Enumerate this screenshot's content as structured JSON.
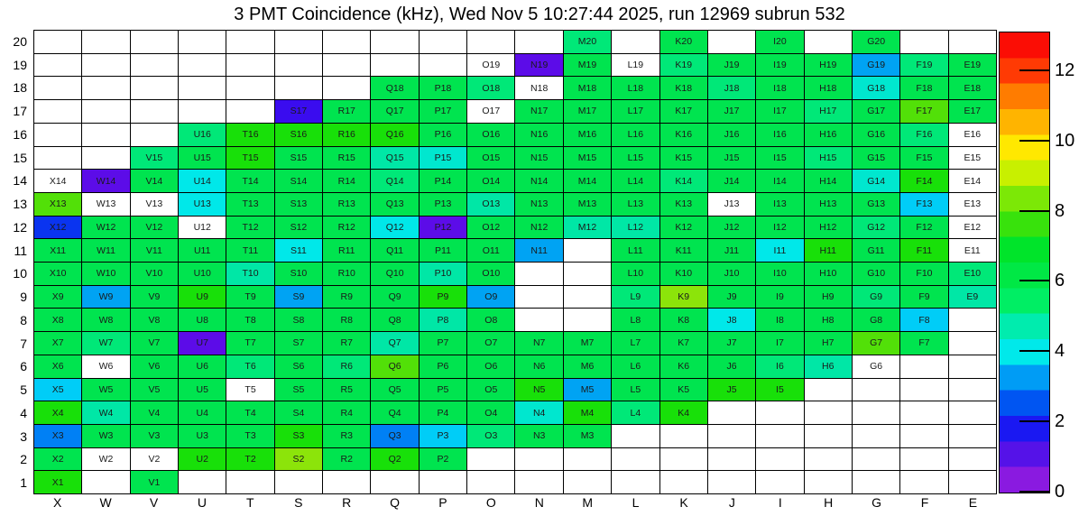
{
  "title": "3 PMT Coincidence (kHz), Wed Nov  5 10:27:44 2025, run 12969 subrun 532",
  "chart_data": {
    "type": "heatmap",
    "title": "3 PMT Coincidence (kHz), Wed Nov  5 10:27:44 2025, run 12969 subrun 532",
    "unit": "kHz",
    "columns": [
      "X",
      "W",
      "V",
      "U",
      "T",
      "S",
      "R",
      "Q",
      "P",
      "O",
      "N",
      "M",
      "L",
      "K",
      "J",
      "I",
      "H",
      "G",
      "F",
      "E"
    ],
    "rows": [
      20,
      19,
      18,
      17,
      16,
      15,
      14,
      13,
      12,
      11,
      10,
      9,
      8,
      7,
      6,
      5,
      4,
      3,
      2,
      1
    ],
    "colorbar": {
      "min": 0,
      "max": 13.1,
      "ticks": [
        0,
        2,
        4,
        6,
        8,
        10,
        12
      ],
      "bands_bottom_to_top": [
        "#8a1ae0",
        "#5512e8",
        "#1a18f2",
        "#0055f2",
        "#009cf5",
        "#00e9ea",
        "#00ecae",
        "#00ee64",
        "#00e845",
        "#00e42a",
        "#38e20c",
        "#7ce806",
        "#c8f000",
        "#ffe800",
        "#ffb400",
        "#ff7c00",
        "#ff3a04",
        "#fb0d05"
      ]
    },
    "palette": {
      "w": {
        "color": "#ffffff",
        "approx_khz": null
      },
      "vi": {
        "color": "#5c0ce8",
        "approx_khz": 0.7
      },
      "bv": {
        "color": "#3a0cef",
        "approx_khz": 1.5
      },
      "bl": {
        "color": "#0a34f0",
        "approx_khz": 2.2
      },
      "db": {
        "color": "#0080f5",
        "approx_khz": 2.9
      },
      "sb": {
        "color": "#00a3f3",
        "approx_khz": 3.4
      },
      "cb": {
        "color": "#00cdf7",
        "approx_khz": 3.9
      },
      "cy": {
        "color": "#00e8e9",
        "approx_khz": 4.4
      },
      "tl": {
        "color": "#00e7cf",
        "approx_khz": 4.9
      },
      "tg": {
        "color": "#00e7a6",
        "approx_khz": 5.4
      },
      "sg": {
        "color": "#00e878",
        "approx_khz": 6.1
      },
      "g": {
        "color": "#00e44f",
        "approx_khz": 7.0
      },
      "bg": {
        "color": "#18e009",
        "approx_khz": 7.9
      },
      "cg": {
        "color": "#52e008",
        "approx_khz": 8.7
      },
      "yg": {
        "color": "#8ce40a",
        "approx_khz": 9.3
      }
    },
    "cells": [
      [
        "M20",
        "sg"
      ],
      [
        "K20",
        "g"
      ],
      [
        "I20",
        "g"
      ],
      [
        "G20",
        "g"
      ],
      [
        "O19",
        "w"
      ],
      [
        "N19",
        "vi"
      ],
      [
        "M19",
        "g"
      ],
      [
        "L19",
        "w"
      ],
      [
        "K19",
        "sg"
      ],
      [
        "J19",
        "g"
      ],
      [
        "I19",
        "g"
      ],
      [
        "H19",
        "g"
      ],
      [
        "G19",
        "sb"
      ],
      [
        "F19",
        "sg"
      ],
      [
        "E19",
        "g"
      ],
      [
        "Q18",
        "g"
      ],
      [
        "P18",
        "g"
      ],
      [
        "O18",
        "sg"
      ],
      [
        "N18",
        "w"
      ],
      [
        "M18",
        "g"
      ],
      [
        "L18",
        "g"
      ],
      [
        "K18",
        "g"
      ],
      [
        "J18",
        "sg"
      ],
      [
        "I18",
        "g"
      ],
      [
        "H18",
        "g"
      ],
      [
        "G18",
        "tl"
      ],
      [
        "F18",
        "g"
      ],
      [
        "E18",
        "g"
      ],
      [
        "S17",
        "bv"
      ],
      [
        "R17",
        "g"
      ],
      [
        "Q17",
        "g"
      ],
      [
        "P17",
        "g"
      ],
      [
        "O17",
        "w"
      ],
      [
        "N17",
        "g"
      ],
      [
        "M17",
        "g"
      ],
      [
        "L17",
        "g"
      ],
      [
        "K17",
        "g"
      ],
      [
        "J17",
        "g"
      ],
      [
        "I17",
        "g"
      ],
      [
        "H17",
        "sg"
      ],
      [
        "G17",
        "g"
      ],
      [
        "F17",
        "cg"
      ],
      [
        "E17",
        "g"
      ],
      [
        "U16",
        "sg"
      ],
      [
        "T16",
        "bg"
      ],
      [
        "S16",
        "bg"
      ],
      [
        "R16",
        "bg"
      ],
      [
        "Q16",
        "bg"
      ],
      [
        "P16",
        "g"
      ],
      [
        "O16",
        "g"
      ],
      [
        "N16",
        "g"
      ],
      [
        "M16",
        "g"
      ],
      [
        "L16",
        "g"
      ],
      [
        "K16",
        "g"
      ],
      [
        "J16",
        "g"
      ],
      [
        "I16",
        "g"
      ],
      [
        "H16",
        "g"
      ],
      [
        "G16",
        "g"
      ],
      [
        "F16",
        "sg"
      ],
      [
        "E16",
        "w"
      ],
      [
        "V15",
        "sg"
      ],
      [
        "U15",
        "g"
      ],
      [
        "T15",
        "bg"
      ],
      [
        "S15",
        "g"
      ],
      [
        "R15",
        "g"
      ],
      [
        "Q15",
        "tg"
      ],
      [
        "P15",
        "tl"
      ],
      [
        "O15",
        "g"
      ],
      [
        "N15",
        "g"
      ],
      [
        "M15",
        "g"
      ],
      [
        "L15",
        "g"
      ],
      [
        "K15",
        "g"
      ],
      [
        "J15",
        "g"
      ],
      [
        "I15",
        "g"
      ],
      [
        "H15",
        "sg"
      ],
      [
        "G15",
        "g"
      ],
      [
        "F15",
        "g"
      ],
      [
        "E15",
        "w"
      ],
      [
        "X14",
        "w"
      ],
      [
        "W14",
        "vi"
      ],
      [
        "V14",
        "g"
      ],
      [
        "U14",
        "cy"
      ],
      [
        "T14",
        "g"
      ],
      [
        "S14",
        "g"
      ],
      [
        "R14",
        "g"
      ],
      [
        "Q14",
        "sg"
      ],
      [
        "P14",
        "g"
      ],
      [
        "O14",
        "g"
      ],
      [
        "N14",
        "g"
      ],
      [
        "M14",
        "g"
      ],
      [
        "L14",
        "g"
      ],
      [
        "K14",
        "sg"
      ],
      [
        "J14",
        "g"
      ],
      [
        "I14",
        "g"
      ],
      [
        "H14",
        "g"
      ],
      [
        "G14",
        "tl"
      ],
      [
        "F14",
        "bg"
      ],
      [
        "E14",
        "w"
      ],
      [
        "X13",
        "cg"
      ],
      [
        "W13",
        "w"
      ],
      [
        "V13",
        "w"
      ],
      [
        "U13",
        "cy"
      ],
      [
        "T13",
        "g"
      ],
      [
        "S13",
        "g"
      ],
      [
        "R13",
        "g"
      ],
      [
        "Q13",
        "g"
      ],
      [
        "P13",
        "g"
      ],
      [
        "O13",
        "tg"
      ],
      [
        "N13",
        "g"
      ],
      [
        "M13",
        "g"
      ],
      [
        "L13",
        "g"
      ],
      [
        "K13",
        "g"
      ],
      [
        "J13",
        "w"
      ],
      [
        "I13",
        "g"
      ],
      [
        "H13",
        "g"
      ],
      [
        "G13",
        "g"
      ],
      [
        "F13",
        "cb"
      ],
      [
        "E13",
        "w"
      ],
      [
        "X12",
        "bl"
      ],
      [
        "W12",
        "g"
      ],
      [
        "V12",
        "g"
      ],
      [
        "U12",
        "w"
      ],
      [
        "T12",
        "g"
      ],
      [
        "S12",
        "g"
      ],
      [
        "R12",
        "g"
      ],
      [
        "Q12",
        "cy"
      ],
      [
        "P12",
        "vi"
      ],
      [
        "O12",
        "g"
      ],
      [
        "N12",
        "g"
      ],
      [
        "M12",
        "tg"
      ],
      [
        "L12",
        "tg"
      ],
      [
        "K12",
        "g"
      ],
      [
        "J12",
        "g"
      ],
      [
        "I12",
        "g"
      ],
      [
        "H12",
        "g"
      ],
      [
        "G12",
        "sg"
      ],
      [
        "F12",
        "g"
      ],
      [
        "E12",
        "w"
      ],
      [
        "X11",
        "g"
      ],
      [
        "W11",
        "g"
      ],
      [
        "V11",
        "g"
      ],
      [
        "U11",
        "g"
      ],
      [
        "T11",
        "g"
      ],
      [
        "S11",
        "cy"
      ],
      [
        "R11",
        "g"
      ],
      [
        "Q11",
        "g"
      ],
      [
        "P11",
        "g"
      ],
      [
        "O11",
        "g"
      ],
      [
        "N11",
        "sb"
      ],
      [
        "L11",
        "g"
      ],
      [
        "K11",
        "g"
      ],
      [
        "J11",
        "g"
      ],
      [
        "I11",
        "cy"
      ],
      [
        "H11",
        "bg"
      ],
      [
        "G11",
        "g"
      ],
      [
        "F11",
        "bg"
      ],
      [
        "E11",
        "w"
      ],
      [
        "X10",
        "g"
      ],
      [
        "W10",
        "g"
      ],
      [
        "V10",
        "g"
      ],
      [
        "U10",
        "g"
      ],
      [
        "T10",
        "tg"
      ],
      [
        "S10",
        "g"
      ],
      [
        "R10",
        "g"
      ],
      [
        "Q10",
        "g"
      ],
      [
        "P10",
        "tg"
      ],
      [
        "O10",
        "g"
      ],
      [
        "L10",
        "g"
      ],
      [
        "K10",
        "g"
      ],
      [
        "J10",
        "g"
      ],
      [
        "I10",
        "g"
      ],
      [
        "H10",
        "g"
      ],
      [
        "G10",
        "g"
      ],
      [
        "F10",
        "g"
      ],
      [
        "E10",
        "sg"
      ],
      [
        "X9",
        "g"
      ],
      [
        "W9",
        "sb"
      ],
      [
        "V9",
        "g"
      ],
      [
        "U9",
        "bg"
      ],
      [
        "T9",
        "g"
      ],
      [
        "S9",
        "sb"
      ],
      [
        "R9",
        "g"
      ],
      [
        "Q9",
        "g"
      ],
      [
        "P9",
        "bg"
      ],
      [
        "O9",
        "sb"
      ],
      [
        "L9",
        "sg"
      ],
      [
        "K9",
        "yg"
      ],
      [
        "J9",
        "g"
      ],
      [
        "I9",
        "g"
      ],
      [
        "H9",
        "g"
      ],
      [
        "G9",
        "sg"
      ],
      [
        "F9",
        "g"
      ],
      [
        "E9",
        "tg"
      ],
      [
        "X8",
        "g"
      ],
      [
        "W8",
        "g"
      ],
      [
        "V8",
        "g"
      ],
      [
        "U8",
        "g"
      ],
      [
        "T8",
        "g"
      ],
      [
        "S8",
        "g"
      ],
      [
        "R8",
        "g"
      ],
      [
        "Q8",
        "g"
      ],
      [
        "P8",
        "tg"
      ],
      [
        "O8",
        "g"
      ],
      [
        "L8",
        "g"
      ],
      [
        "K8",
        "g"
      ],
      [
        "J8",
        "cy"
      ],
      [
        "I8",
        "g"
      ],
      [
        "H8",
        "g"
      ],
      [
        "G8",
        "g"
      ],
      [
        "F8",
        "cb"
      ],
      [
        "X7",
        "g"
      ],
      [
        "W7",
        "sg"
      ],
      [
        "V7",
        "g"
      ],
      [
        "U7",
        "vi"
      ],
      [
        "T7",
        "g"
      ],
      [
        "S7",
        "g"
      ],
      [
        "R7",
        "g"
      ],
      [
        "Q7",
        "tg"
      ],
      [
        "P7",
        "g"
      ],
      [
        "O7",
        "g"
      ],
      [
        "N7",
        "g"
      ],
      [
        "M7",
        "g"
      ],
      [
        "L7",
        "g"
      ],
      [
        "K7",
        "g"
      ],
      [
        "J7",
        "g"
      ],
      [
        "I7",
        "g"
      ],
      [
        "H7",
        "g"
      ],
      [
        "G7",
        "cg"
      ],
      [
        "F7",
        "g"
      ],
      [
        "X6",
        "g"
      ],
      [
        "W6",
        "w"
      ],
      [
        "V6",
        "g"
      ],
      [
        "U6",
        "g"
      ],
      [
        "T6",
        "sg"
      ],
      [
        "S6",
        "g"
      ],
      [
        "R6",
        "sg"
      ],
      [
        "Q6",
        "cg"
      ],
      [
        "P6",
        "g"
      ],
      [
        "O6",
        "g"
      ],
      [
        "N6",
        "g"
      ],
      [
        "M6",
        "g"
      ],
      [
        "L6",
        "g"
      ],
      [
        "K6",
        "g"
      ],
      [
        "J6",
        "g"
      ],
      [
        "I6",
        "sg"
      ],
      [
        "H6",
        "tg"
      ],
      [
        "G6",
        "w"
      ],
      [
        "X5",
        "cb"
      ],
      [
        "W5",
        "g"
      ],
      [
        "V5",
        "g"
      ],
      [
        "U5",
        "g"
      ],
      [
        "T5",
        "w"
      ],
      [
        "S5",
        "g"
      ],
      [
        "R5",
        "g"
      ],
      [
        "Q5",
        "g"
      ],
      [
        "P5",
        "g"
      ],
      [
        "O5",
        "g"
      ],
      [
        "N5",
        "bg"
      ],
      [
        "M5",
        "sb"
      ],
      [
        "L5",
        "g"
      ],
      [
        "K5",
        "g"
      ],
      [
        "J5",
        "bg"
      ],
      [
        "I5",
        "bg"
      ],
      [
        "X4",
        "bg"
      ],
      [
        "W4",
        "tg"
      ],
      [
        "V4",
        "g"
      ],
      [
        "U4",
        "g"
      ],
      [
        "T4",
        "g"
      ],
      [
        "S4",
        "g"
      ],
      [
        "R4",
        "g"
      ],
      [
        "Q4",
        "g"
      ],
      [
        "P4",
        "g"
      ],
      [
        "O4",
        "g"
      ],
      [
        "N4",
        "tl"
      ],
      [
        "M4",
        "bg"
      ],
      [
        "L4",
        "sg"
      ],
      [
        "K4",
        "bg"
      ],
      [
        "X3",
        "db"
      ],
      [
        "W3",
        "g"
      ],
      [
        "V3",
        "g"
      ],
      [
        "U3",
        "g"
      ],
      [
        "T3",
        "g"
      ],
      [
        "S3",
        "bg"
      ],
      [
        "R3",
        "g"
      ],
      [
        "Q3",
        "db"
      ],
      [
        "P3",
        "cb"
      ],
      [
        "O3",
        "sg"
      ],
      [
        "N3",
        "g"
      ],
      [
        "M3",
        "g"
      ],
      [
        "X2",
        "g"
      ],
      [
        "W2",
        "w"
      ],
      [
        "V2",
        "w"
      ],
      [
        "U2",
        "bg"
      ],
      [
        "T2",
        "bg"
      ],
      [
        "S2",
        "yg"
      ],
      [
        "R2",
        "g"
      ],
      [
        "Q2",
        "bg"
      ],
      [
        "P2",
        "g"
      ],
      [
        "X1",
        "bg"
      ],
      [
        "V1",
        "g"
      ]
    ]
  }
}
